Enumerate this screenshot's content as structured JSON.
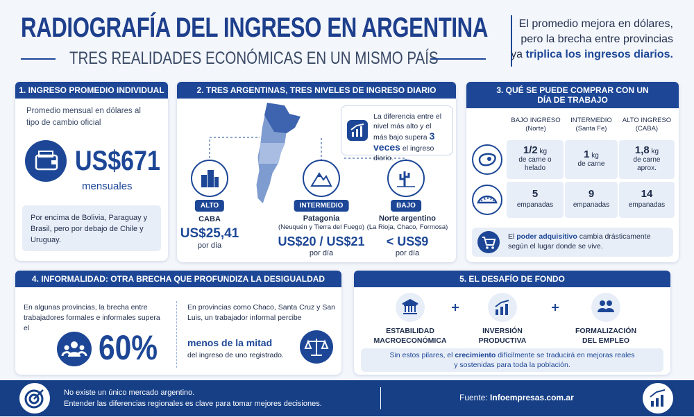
{
  "header": {
    "title": "RADIOGRAFÍA DEL INGRESO EN ARGENTINA",
    "subtitle": "TRES REALIDADES ECONÓMICAS EN UN MISMO PAÍS",
    "note": {
      "line1": "El promedio mejora en dólares,",
      "line2": "pero la brecha entre provincias",
      "line3_prefix": "ya",
      "line3_highlight": "triplica los ingresos diarios."
    }
  },
  "section1": {
    "heading": "1. INGRESO PROMEDIO INDIVIDUAL",
    "description": "Promedio mensual en dólares al tipo de cambio oficial",
    "amount": "US$671",
    "unit": "mensuales",
    "comparison": "Por encima de Bolivia, Paraguay y Brasil, pero por debajo de Chile y Uruguay."
  },
  "section2": {
    "heading": "2. TRES ARGENTINAS, TRES NIVELES DE INGRESO DIARIO",
    "callout": {
      "before": "La diferencia entre el nivel más alto y el más bajo supera",
      "highlight": "3 veces",
      "after": "el ingreso diario."
    },
    "regions": [
      {
        "level": "ALTO",
        "name": "CABA",
        "amount": "US$25,41",
        "unit": "por día"
      },
      {
        "level": "INTERMEDIO",
        "name": "Patagonia",
        "detail": "(Neuquén y Tierra del Fuego)",
        "amount": "US$20 / US$21",
        "unit": "por día"
      },
      {
        "level": "BAJO",
        "name": "Norte argentino",
        "detail": "(La Rioja, Chaco, Formosa)",
        "amount": "< US$9",
        "unit": "por día"
      }
    ]
  },
  "section3": {
    "heading": "3. QUÉ SE PUEDE COMPRAR CON UN DÍA DE TRABAJO",
    "columns": [
      {
        "label": "BAJO INGRESO",
        "sub": "(Norte)"
      },
      {
        "label": "INTERMEDIO",
        "sub": "(Santa Fe)"
      },
      {
        "label": "ALTO INGRESO",
        "sub": "(CABA)"
      }
    ],
    "rows": [
      [
        {
          "amount": "1/2",
          "unit": "kg",
          "desc": "de carne o helado"
        },
        {
          "amount": "1",
          "unit": "kg",
          "desc": "de carne"
        },
        {
          "amount": "1,8",
          "unit": "kg",
          "desc": "de carne aprox."
        }
      ],
      [
        {
          "amount": "5",
          "desc": "empanadas"
        },
        {
          "amount": "9",
          "desc": "empanadas"
        },
        {
          "amount": "14",
          "desc": "empanadas"
        }
      ]
    ],
    "footer": {
      "before": "El",
      "highlight": "poder adquisitivo",
      "after": "cambia drásticamente según el lugar donde se vive."
    }
  },
  "section4": {
    "heading": "4. INFORMALIDAD: OTRA BRECHA QUE PROFUNDIZA LA DESIGUALDAD",
    "left_text": "En algunas provincias, la brecha entre trabajadores formales e informales supera el",
    "left_value": "60%",
    "right_text": "En provincias como Chaco, Santa Cruz y San Luis, un trabajador informal percibe",
    "right_highlight": "menos de la mitad",
    "right_tail": "del ingreso de uno registrado."
  },
  "section5": {
    "heading": "5. EL DESAFÍO DE FONDO",
    "pillars": [
      "ESTABILIDAD MACROECONÓMICA",
      "INVERSIÓN PRODUCTIVA",
      "FORMALIZACIÓN DEL EMPLEO"
    ],
    "conclusion": {
      "before": "Sin estos pilares, el",
      "highlight": "crecimiento",
      "after": "difícilmente se traducirá en mejoras reales y sostenidas para toda la población."
    }
  },
  "footer": {
    "message": [
      "No existe un único mercado argentino.",
      "Entender las diferencias regionales es clave para tomar mejores decisiones."
    ],
    "source_label": "Fuente:",
    "source": "Infoempresas.com.ar"
  }
}
